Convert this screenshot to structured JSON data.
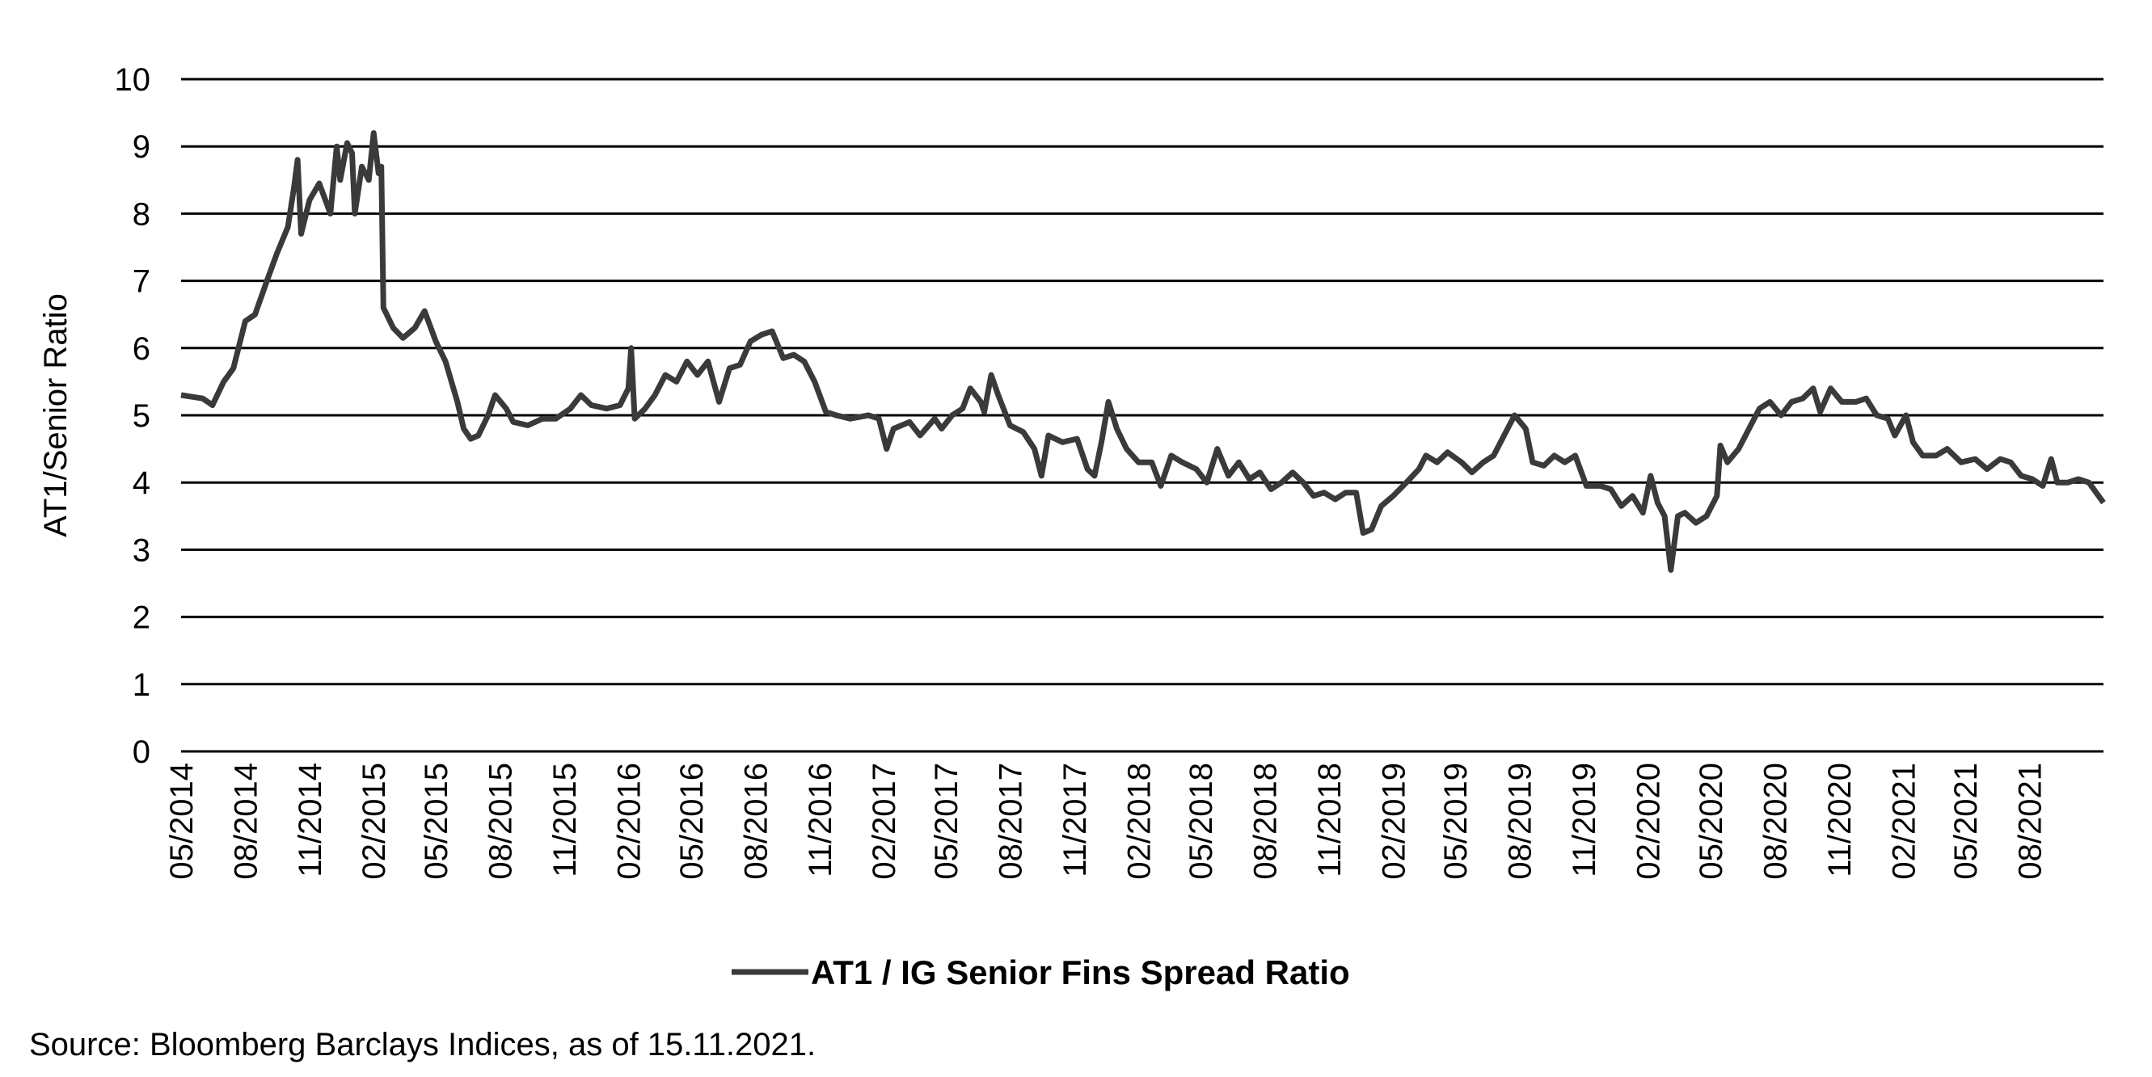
{
  "chart_data": {
    "type": "line",
    "title": "",
    "xlabel": "",
    "ylabel": "AT1/Senior Ratio",
    "ylim": [
      0,
      10
    ],
    "yticks": [
      "0",
      "1",
      "2",
      "3",
      "4",
      "5",
      "6",
      "7",
      "8",
      "9",
      "10"
    ],
    "xlim": [
      "2014-05-01",
      "2021-11-15"
    ],
    "xticks": [
      "05/2014",
      "08/2014",
      "11/2014",
      "02/2015",
      "05/2015",
      "08/2015",
      "11/2015",
      "02/2016",
      "05/2016",
      "08/2016",
      "11/2016",
      "02/2017",
      "05/2017",
      "08/2017",
      "11/2017",
      "02/2018",
      "05/2018",
      "08/2018",
      "11/2018",
      "02/2019",
      "05/2019",
      "08/2019",
      "11/2019",
      "02/2020",
      "05/2020",
      "08/2020",
      "11/2020",
      "02/2021",
      "05/2021",
      "08/2021"
    ],
    "grid": "horizontal",
    "legend_position": "bottom",
    "line_color": "#3a3a3a",
    "series": [
      {
        "name": "AT1 / IG Senior Fins Spread Ratio",
        "x": [
          "2014-05-01",
          "2014-06-01",
          "2014-06-15",
          "2014-07-01",
          "2014-07-15",
          "2014-08-01",
          "2014-08-15",
          "2014-09-01",
          "2014-09-15",
          "2014-10-01",
          "2014-10-10",
          "2014-10-15",
          "2014-10-20",
          "2014-11-01",
          "2014-11-15",
          "2014-12-01",
          "2014-12-10",
          "2014-12-15",
          "2014-12-25",
          "2015-01-01",
          "2015-01-05",
          "2015-01-15",
          "2015-01-25",
          "2015-02-01",
          "2015-02-08",
          "2015-02-12",
          "2015-02-15",
          "2015-03-01",
          "2015-03-15",
          "2015-04-01",
          "2015-04-15",
          "2015-05-01",
          "2015-05-15",
          "2015-06-01",
          "2015-06-10",
          "2015-06-20",
          "2015-07-01",
          "2015-07-15",
          "2015-07-25",
          "2015-08-10",
          "2015-08-20",
          "2015-09-10",
          "2015-10-01",
          "2015-10-20",
          "2015-11-10",
          "2015-11-25",
          "2015-12-10",
          "2016-01-01",
          "2016-01-20",
          "2016-02-01",
          "2016-02-05",
          "2016-02-10",
          "2016-02-25",
          "2016-03-10",
          "2016-03-25",
          "2016-04-10",
          "2016-04-25",
          "2016-05-10",
          "2016-05-25",
          "2016-06-10",
          "2016-06-25",
          "2016-07-10",
          "2016-07-25",
          "2016-08-10",
          "2016-08-25",
          "2016-09-10",
          "2016-09-25",
          "2016-10-10",
          "2016-10-25",
          "2016-11-10",
          "2016-11-25",
          "2016-12-15",
          "2017-01-10",
          "2017-01-25",
          "2017-02-05",
          "2017-02-15",
          "2017-03-10",
          "2017-03-25",
          "2017-04-15",
          "2017-04-25",
          "2017-05-10",
          "2017-05-25",
          "2017-06-05",
          "2017-06-20",
          "2017-06-25",
          "2017-07-05",
          "2017-07-15",
          "2017-08-01",
          "2017-08-20",
          "2017-09-05",
          "2017-09-15",
          "2017-09-25",
          "2017-10-15",
          "2017-11-05",
          "2017-11-20",
          "2017-11-30",
          "2017-12-10",
          "2017-12-20",
          "2018-01-01",
          "2018-01-15",
          "2018-02-01",
          "2018-02-20",
          "2018-03-05",
          "2018-03-20",
          "2018-04-05",
          "2018-04-25",
          "2018-05-10",
          "2018-05-25",
          "2018-06-10",
          "2018-06-25",
          "2018-07-10",
          "2018-07-25",
          "2018-08-10",
          "2018-08-25",
          "2018-09-10",
          "2018-09-25",
          "2018-10-10",
          "2018-10-25",
          "2018-11-10",
          "2018-11-25",
          "2018-12-10",
          "2018-12-20",
          "2019-01-01",
          "2019-01-15",
          "2019-02-01",
          "2019-02-20",
          "2019-03-10",
          "2019-03-20",
          "2019-04-05",
          "2019-04-20",
          "2019-05-10",
          "2019-05-25",
          "2019-06-10",
          "2019-06-25",
          "2019-07-10",
          "2019-07-25",
          "2019-08-10",
          "2019-08-20",
          "2019-09-05",
          "2019-09-20",
          "2019-10-05",
          "2019-10-20",
          "2019-11-05",
          "2019-11-25",
          "2019-12-10",
          "2019-12-25",
          "2020-01-10",
          "2020-01-25",
          "2020-02-05",
          "2020-02-15",
          "2020-02-25",
          "2020-03-05",
          "2020-03-15",
          "2020-03-25",
          "2020-04-10",
          "2020-04-25",
          "2020-05-10",
          "2020-05-15",
          "2020-05-25",
          "2020-06-10",
          "2020-06-25",
          "2020-07-10",
          "2020-07-25",
          "2020-08-10",
          "2020-08-25",
          "2020-09-10",
          "2020-09-25",
          "2020-10-05",
          "2020-10-20",
          "2020-11-05",
          "2020-11-25",
          "2020-12-10",
          "2020-12-25",
          "2021-01-10",
          "2021-01-20",
          "2021-02-05",
          "2021-02-15",
          "2021-03-01",
          "2021-03-20",
          "2021-04-05",
          "2021-04-25",
          "2021-05-15",
          "2021-06-01",
          "2021-06-20",
          "2021-07-05",
          "2021-07-20",
          "2021-08-05",
          "2021-08-20",
          "2021-09-01",
          "2021-09-10",
          "2021-09-25",
          "2021-10-10",
          "2021-10-25",
          "2021-11-15"
        ],
        "y": [
          5.3,
          5.25,
          5.15,
          5.5,
          5.7,
          6.4,
          6.5,
          7.0,
          7.4,
          7.8,
          8.4,
          8.8,
          7.7,
          8.2,
          8.45,
          8.0,
          9.0,
          8.5,
          9.05,
          8.9,
          8.0,
          8.7,
          8.5,
          9.2,
          8.6,
          8.7,
          6.6,
          6.3,
          6.15,
          6.3,
          6.55,
          6.1,
          5.8,
          5.2,
          4.8,
          4.65,
          4.7,
          5.0,
          5.3,
          5.1,
          4.9,
          4.85,
          4.95,
          4.95,
          5.1,
          5.3,
          5.15,
          5.1,
          5.15,
          5.4,
          6.0,
          4.95,
          5.1,
          5.3,
          5.6,
          5.5,
          5.8,
          5.6,
          5.8,
          5.2,
          5.7,
          5.75,
          6.1,
          6.2,
          6.25,
          5.85,
          5.9,
          5.8,
          5.5,
          5.05,
          5.0,
          4.95,
          5.0,
          4.95,
          4.5,
          4.8,
          4.9,
          4.7,
          4.95,
          4.8,
          5.0,
          5.1,
          5.4,
          5.2,
          5.05,
          5.6,
          5.3,
          4.85,
          4.75,
          4.5,
          4.1,
          4.7,
          4.6,
          4.65,
          4.2,
          4.1,
          4.6,
          5.2,
          4.8,
          4.5,
          4.3,
          4.3,
          3.95,
          4.4,
          4.3,
          4.2,
          4.0,
          4.5,
          4.1,
          4.3,
          4.05,
          4.15,
          3.9,
          4.0,
          4.15,
          4.0,
          3.8,
          3.85,
          3.75,
          3.85,
          3.85,
          3.25,
          3.3,
          3.65,
          3.8,
          4.0,
          4.2,
          4.4,
          4.3,
          4.45,
          4.3,
          4.15,
          4.3,
          4.4,
          4.7,
          5.0,
          4.8,
          4.3,
          4.25,
          4.4,
          4.3,
          4.4,
          3.95,
          3.95,
          3.9,
          3.65,
          3.8,
          3.55,
          4.1,
          3.7,
          3.5,
          2.7,
          3.5,
          3.55,
          3.4,
          3.5,
          3.8,
          4.55,
          4.3,
          4.5,
          4.8,
          5.1,
          5.2,
          5.0,
          5.2,
          5.25,
          5.4,
          5.05,
          5.4,
          5.2,
          5.2,
          5.25,
          5.0,
          4.95,
          4.7,
          5.0,
          4.6,
          4.4,
          4.4,
          4.5,
          4.3,
          4.35,
          4.2,
          4.35,
          4.3,
          4.1,
          4.05,
          3.95,
          4.35,
          4.0,
          4.0,
          4.05,
          4.0,
          3.7
        ]
      }
    ],
    "source": "Source: Bloomberg Barclays Indices, as of 15.11.2021."
  }
}
